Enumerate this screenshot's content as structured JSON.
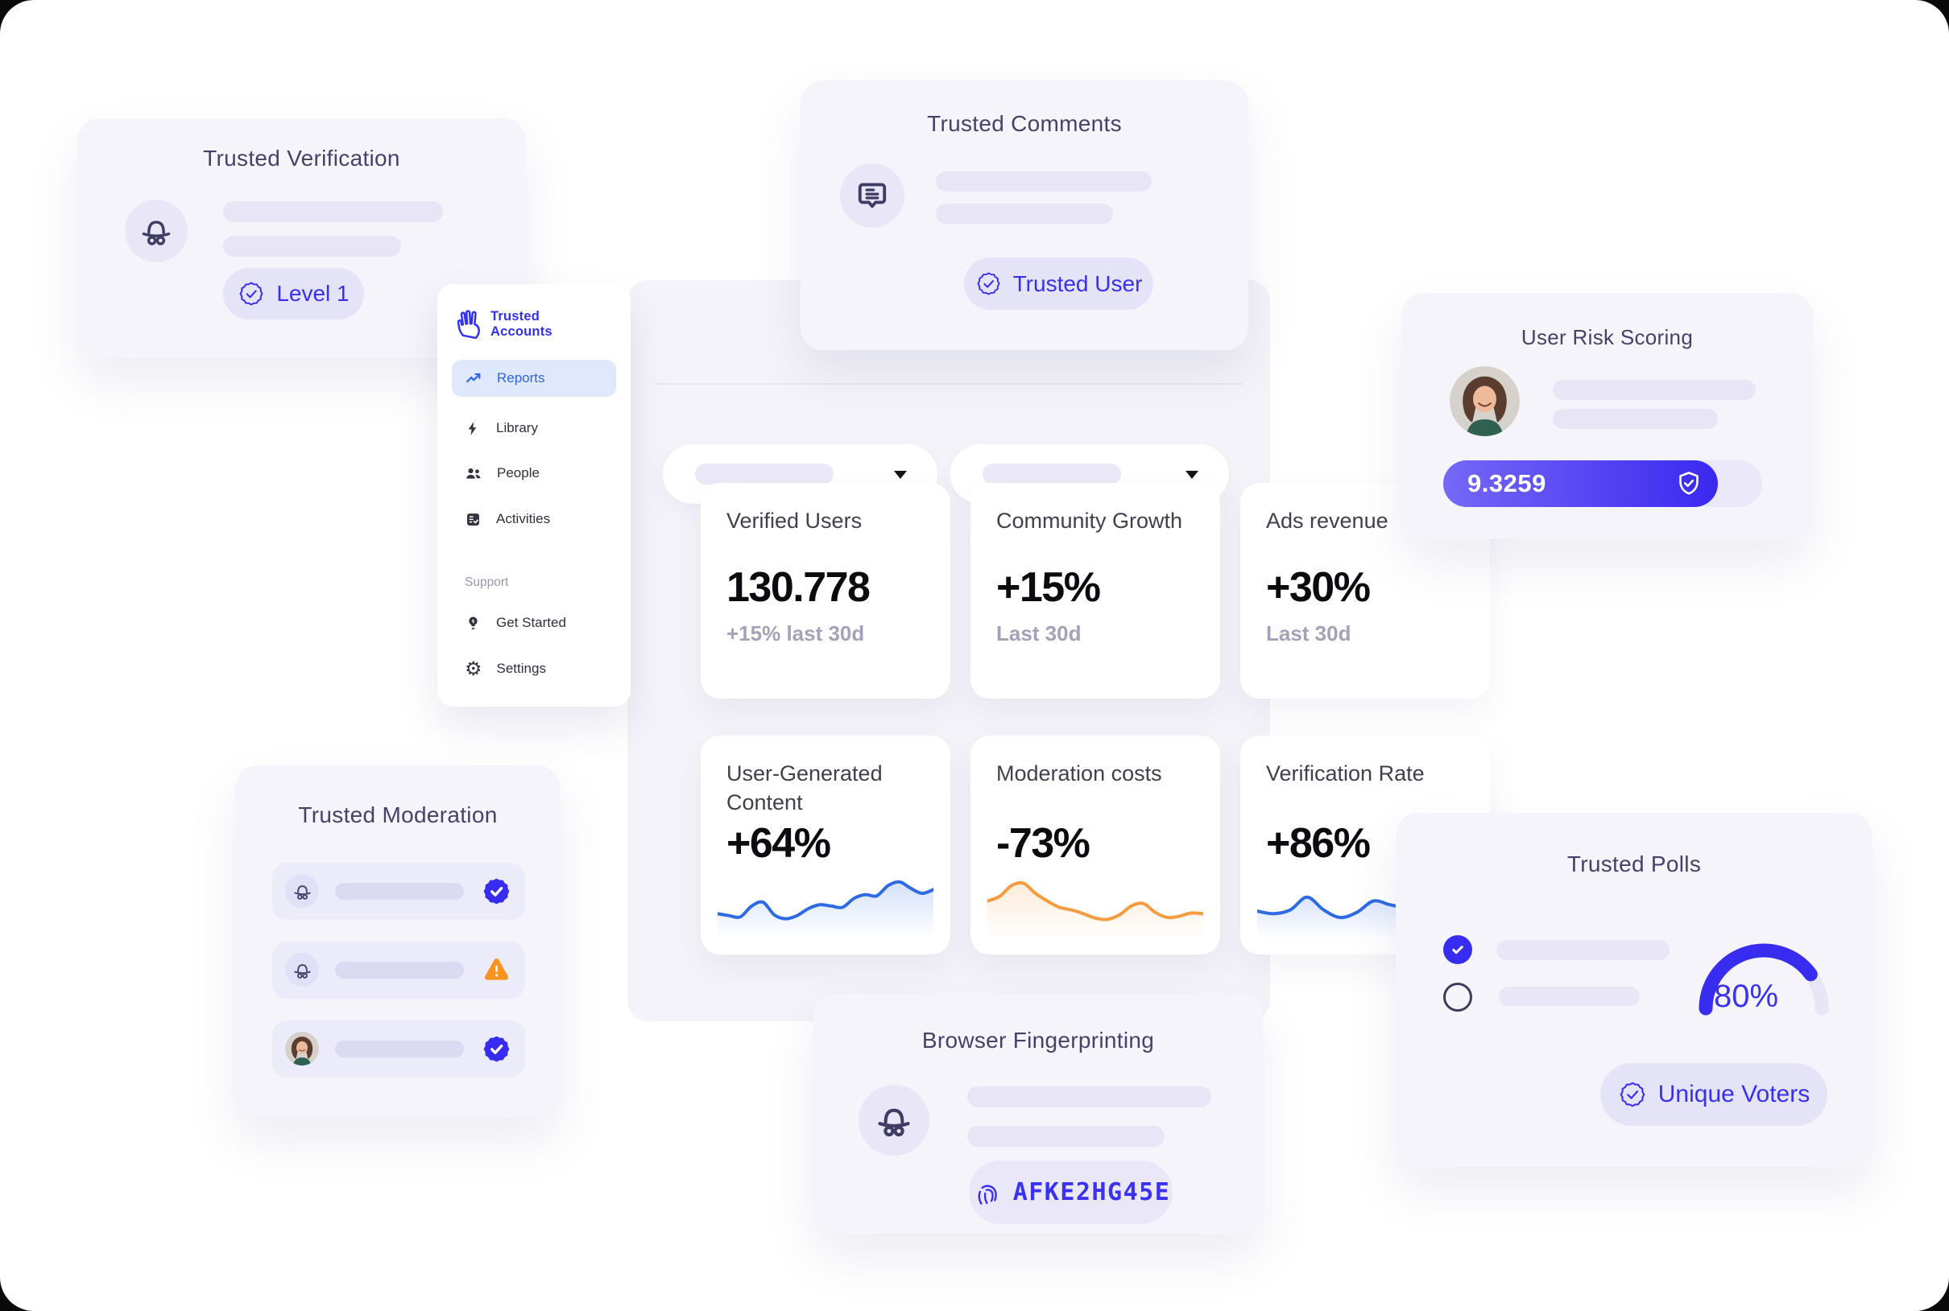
{
  "colors": {
    "accent_indigo": "#3a2ff1",
    "badge_fill": "#372cf0",
    "reports_blue": "#2b66e3",
    "chart_blue": "#2e6ae4",
    "chart_orange": "#f59b40",
    "warning_orange": "#f7941f",
    "navy_title": "#454269",
    "score_gradient_start": "#7668f7",
    "score_gradient_end": "#3a28f0"
  },
  "icons": {
    "logo": "hand-logo-icon",
    "incognito": "incognito-icon",
    "comment": "comment-icon",
    "badge_check": "badge-check-icon",
    "shield_check": "shield-check-icon",
    "warning": "warning-triangle-icon",
    "fingerprint": "fingerprint-icon",
    "reports": "trending-up-icon",
    "library": "bolt-icon",
    "people": "people-icon",
    "activities": "checklist-icon",
    "get_started": "lightbulb-icon",
    "settings": "gear-icon",
    "select_caret": "chevron-down-icon"
  },
  "cards": {
    "trusted_verification": {
      "title": "Trusted Verification",
      "badge_label": "Level 1"
    },
    "trusted_comments": {
      "title": "Trusted Comments",
      "badge_label": "Trusted User"
    },
    "sidebar": {
      "logo_line1": "Trusted",
      "logo_line2": "Accounts",
      "items": [
        {
          "label": "Reports",
          "active": true
        },
        {
          "label": "Library",
          "active": false
        },
        {
          "label": "People",
          "active": false
        },
        {
          "label": "Activities",
          "active": false
        }
      ],
      "section_label": "Support",
      "support_items": [
        {
          "label": "Get Started"
        },
        {
          "label": "Settings"
        }
      ]
    },
    "user_risk": {
      "title": "User Risk Scoring",
      "score": "9.3259",
      "fill_percent": 86
    },
    "stats": [
      {
        "title": "Verified Users",
        "value": "130.778",
        "sub": "+15% last 30d"
      },
      {
        "title": "Community Growth",
        "value": "+15%",
        "sub": "Last 30d"
      },
      {
        "title": "Ads revenue",
        "value": "+30%",
        "sub": "Last 30d"
      },
      {
        "title": "User-Generated Content",
        "value": "+64%"
      },
      {
        "title": "Moderation costs",
        "value": "-73%"
      },
      {
        "title": "Verification Rate",
        "value": "+86%"
      }
    ],
    "trusted_moderation": {
      "title": "Trusted Moderation",
      "rows": [
        {
          "icon": "incognito",
          "status": "verified"
        },
        {
          "icon": "incognito",
          "status": "warning"
        },
        {
          "icon": "avatar",
          "status": "verified"
        }
      ]
    },
    "browser_fingerprinting": {
      "title": "Browser Fingerprinting",
      "code": "AFKE2HG45E"
    },
    "trusted_polls": {
      "title": "Trusted Polls",
      "gauge_percent": 80,
      "gauge_label": "80%",
      "badge_label": "Unique Voters",
      "options": [
        {
          "checked": true
        },
        {
          "checked": false
        }
      ]
    }
  },
  "sparklines": {
    "ugc": {
      "color": "#2e6ae4",
      "values": [
        30,
        27,
        25,
        42,
        48,
        28,
        22,
        27,
        38,
        44,
        42,
        40,
        54,
        60,
        58,
        74,
        80,
        70,
        62,
        68
      ]
    },
    "moderation": {
      "color": "#f59b40",
      "values": [
        50,
        57,
        74,
        78,
        62,
        50,
        40,
        36,
        30,
        23,
        21,
        28,
        42,
        46,
        32,
        24,
        26,
        31,
        30
      ]
    },
    "verification": {
      "color": "#2e6ae4",
      "values": [
        34,
        30,
        36,
        56,
        36,
        24,
        32,
        50,
        44,
        40,
        48,
        60,
        52,
        62
      ]
    }
  }
}
